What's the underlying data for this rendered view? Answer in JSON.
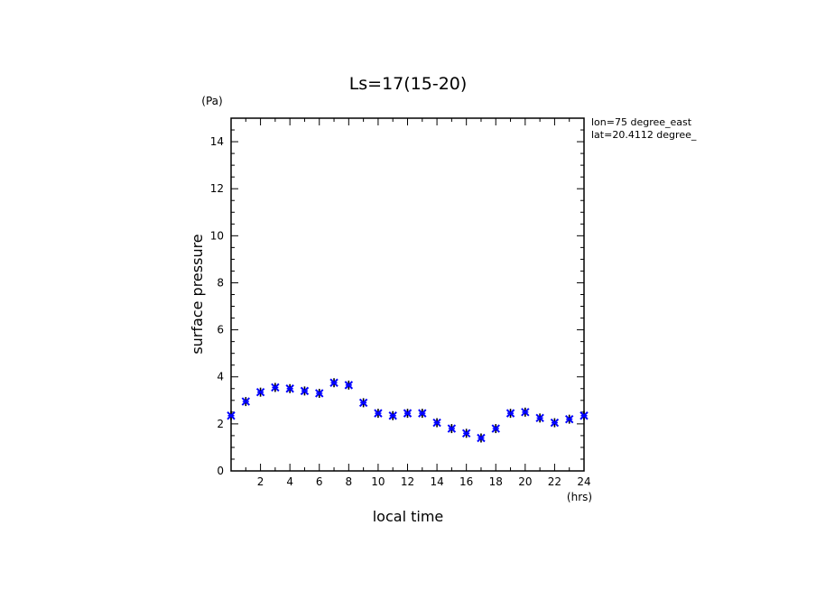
{
  "chart_data": {
    "type": "scatter",
    "title": "Ls=17(15-20)",
    "xlabel": "local time",
    "ylabel": "surface pressure",
    "x_unit": "(hrs)",
    "y_unit": "(Pa)",
    "xlim": [
      0,
      24
    ],
    "ylim": [
      0,
      15
    ],
    "x_ticks": [
      2,
      4,
      6,
      8,
      10,
      12,
      14,
      16,
      18,
      20,
      22,
      24
    ],
    "y_ticks": [
      0,
      2,
      4,
      6,
      8,
      10,
      12,
      14
    ],
    "grid": false,
    "annotations": [
      "lon=75 degree_east",
      "lat=20.4112 degree_"
    ],
    "marker_color": "#0000ff",
    "series": [
      {
        "x": [
          0,
          1,
          2,
          3,
          4,
          5,
          6,
          7,
          8,
          9,
          10,
          11,
          12,
          13,
          14,
          15,
          16,
          17,
          18,
          19,
          20,
          21,
          22,
          23,
          24
        ],
        "y": [
          2.35,
          2.95,
          3.35,
          3.55,
          3.5,
          3.4,
          3.3,
          3.75,
          3.65,
          2.9,
          2.45,
          2.35,
          2.45,
          2.45,
          2.05,
          1.8,
          1.6,
          1.4,
          1.8,
          2.45,
          2.5,
          2.25,
          2.05,
          2.2,
          2.35
        ]
      }
    ]
  }
}
